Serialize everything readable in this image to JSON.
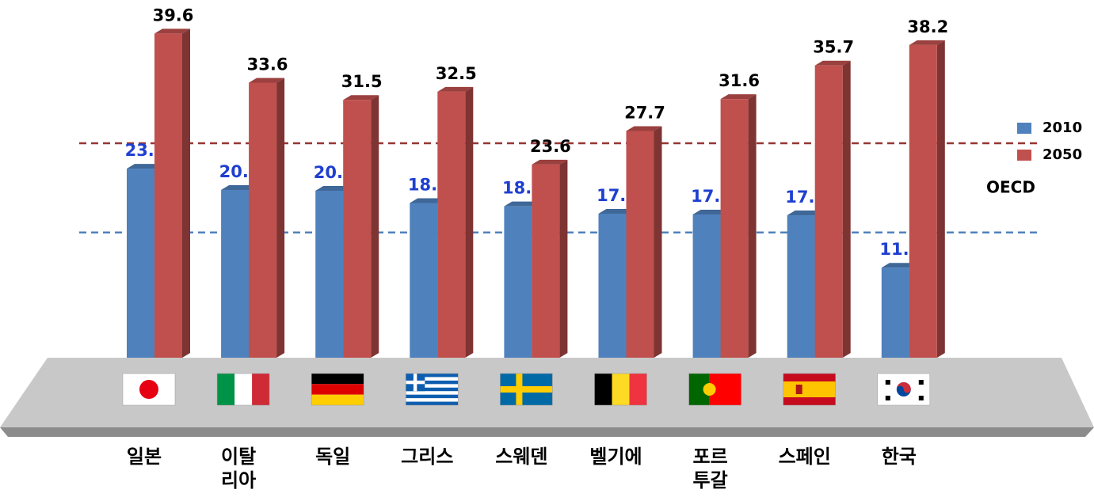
{
  "chart_data": {
    "type": "bar3d",
    "categories": [
      "일본",
      "이탈\n리아",
      "독일",
      "그리스",
      "스웨덴",
      "벨기에",
      "포르\n투갈",
      "스페인",
      "한국"
    ],
    "series": [
      {
        "name": "2010",
        "color": "#4f81bd",
        "label_color": "#1f3fcf",
        "values": [
          23.1,
          20.5,
          20.4,
          18.9,
          18.5,
          17.6,
          17.5,
          17.4,
          11.0
        ],
        "value_labels": [
          "23.1",
          "20.5",
          "20.4",
          "18.9",
          "18.5",
          "17.6",
          "17.5",
          "17.4",
          "11.0"
        ]
      },
      {
        "name": "2050",
        "color": "#c0504d",
        "label_color": "#000000",
        "values": [
          39.6,
          33.6,
          31.5,
          32.5,
          23.6,
          27.7,
          31.6,
          35.7,
          38.2
        ],
        "value_labels": [
          "39.6",
          "33.6",
          "31.5",
          "32.5",
          "23.6",
          "27.7",
          "31.6",
          "35.7",
          "38.2"
        ]
      }
    ],
    "reference_lines": [
      {
        "value": 26.2,
        "color": "#953735"
      },
      {
        "value": 15.3,
        "color": "#4f81bd"
      }
    ],
    "reference_label": "OECD",
    "ylim": [
      0,
      43.7
    ]
  }
}
